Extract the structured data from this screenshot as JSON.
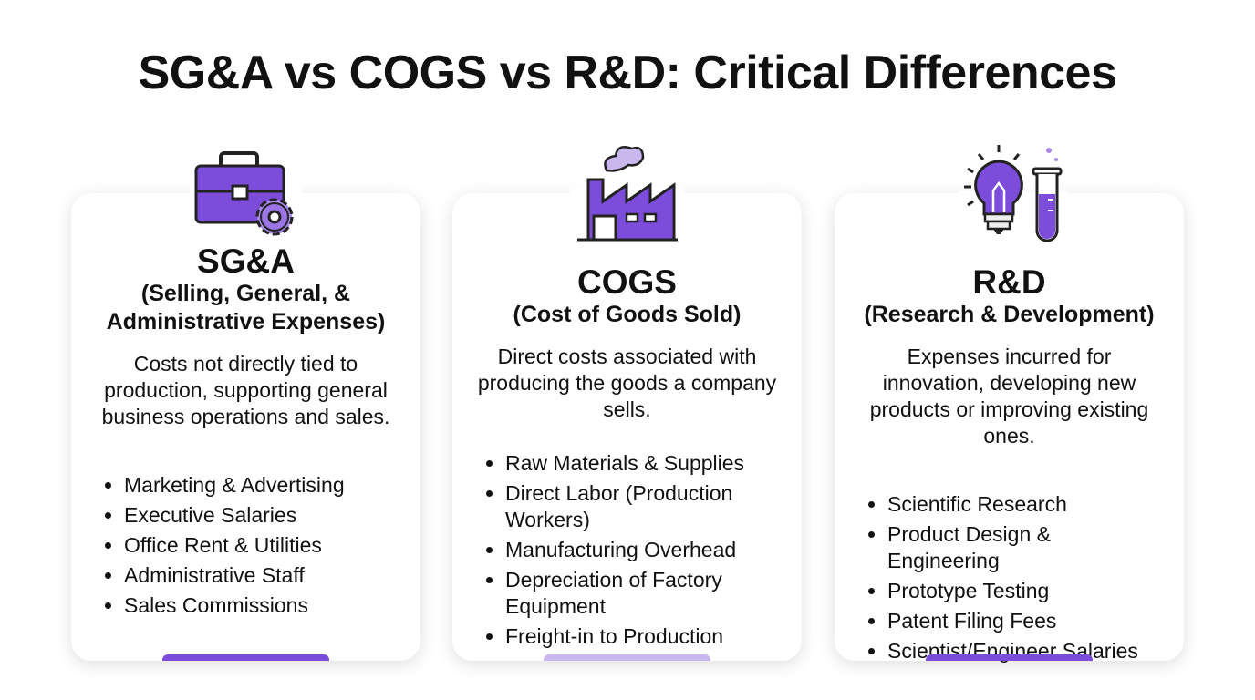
{
  "title": "SG&A vs COGS vs R&D: Critical Differences",
  "cards": [
    {
      "name": "SG&A",
      "subtitle": "(Selling, General, & Administrative Expenses)",
      "description": "Costs not directly tied to production, supporting general business operations and sales.",
      "items": [
        "Marketing & Advertising",
        "Executive Salaries",
        "Office Rent & Utilities",
        "Administrative Staff",
        "Sales Commissions"
      ]
    },
    {
      "name": "COGS",
      "subtitle": "(Cost of Goods Sold)",
      "description": "Direct costs associated with producing the goods a company sells.",
      "items": [
        "Raw Materials & Supplies",
        "Direct Labor (Production Workers)",
        "Manufacturing Overhead",
        "Depreciation of Factory Equipment",
        "Freight-in to Production"
      ]
    },
    {
      "name": "R&D",
      "subtitle": "(Research & Development)",
      "description": "Expenses incurred for innovation, developing new products or improving existing ones.",
      "items": [
        "Scientific Research",
        "Product Design & Engineering",
        "Prototype Testing",
        "Patent Filing Fees",
        "Scientist/Engineer Salaries"
      ]
    }
  ]
}
